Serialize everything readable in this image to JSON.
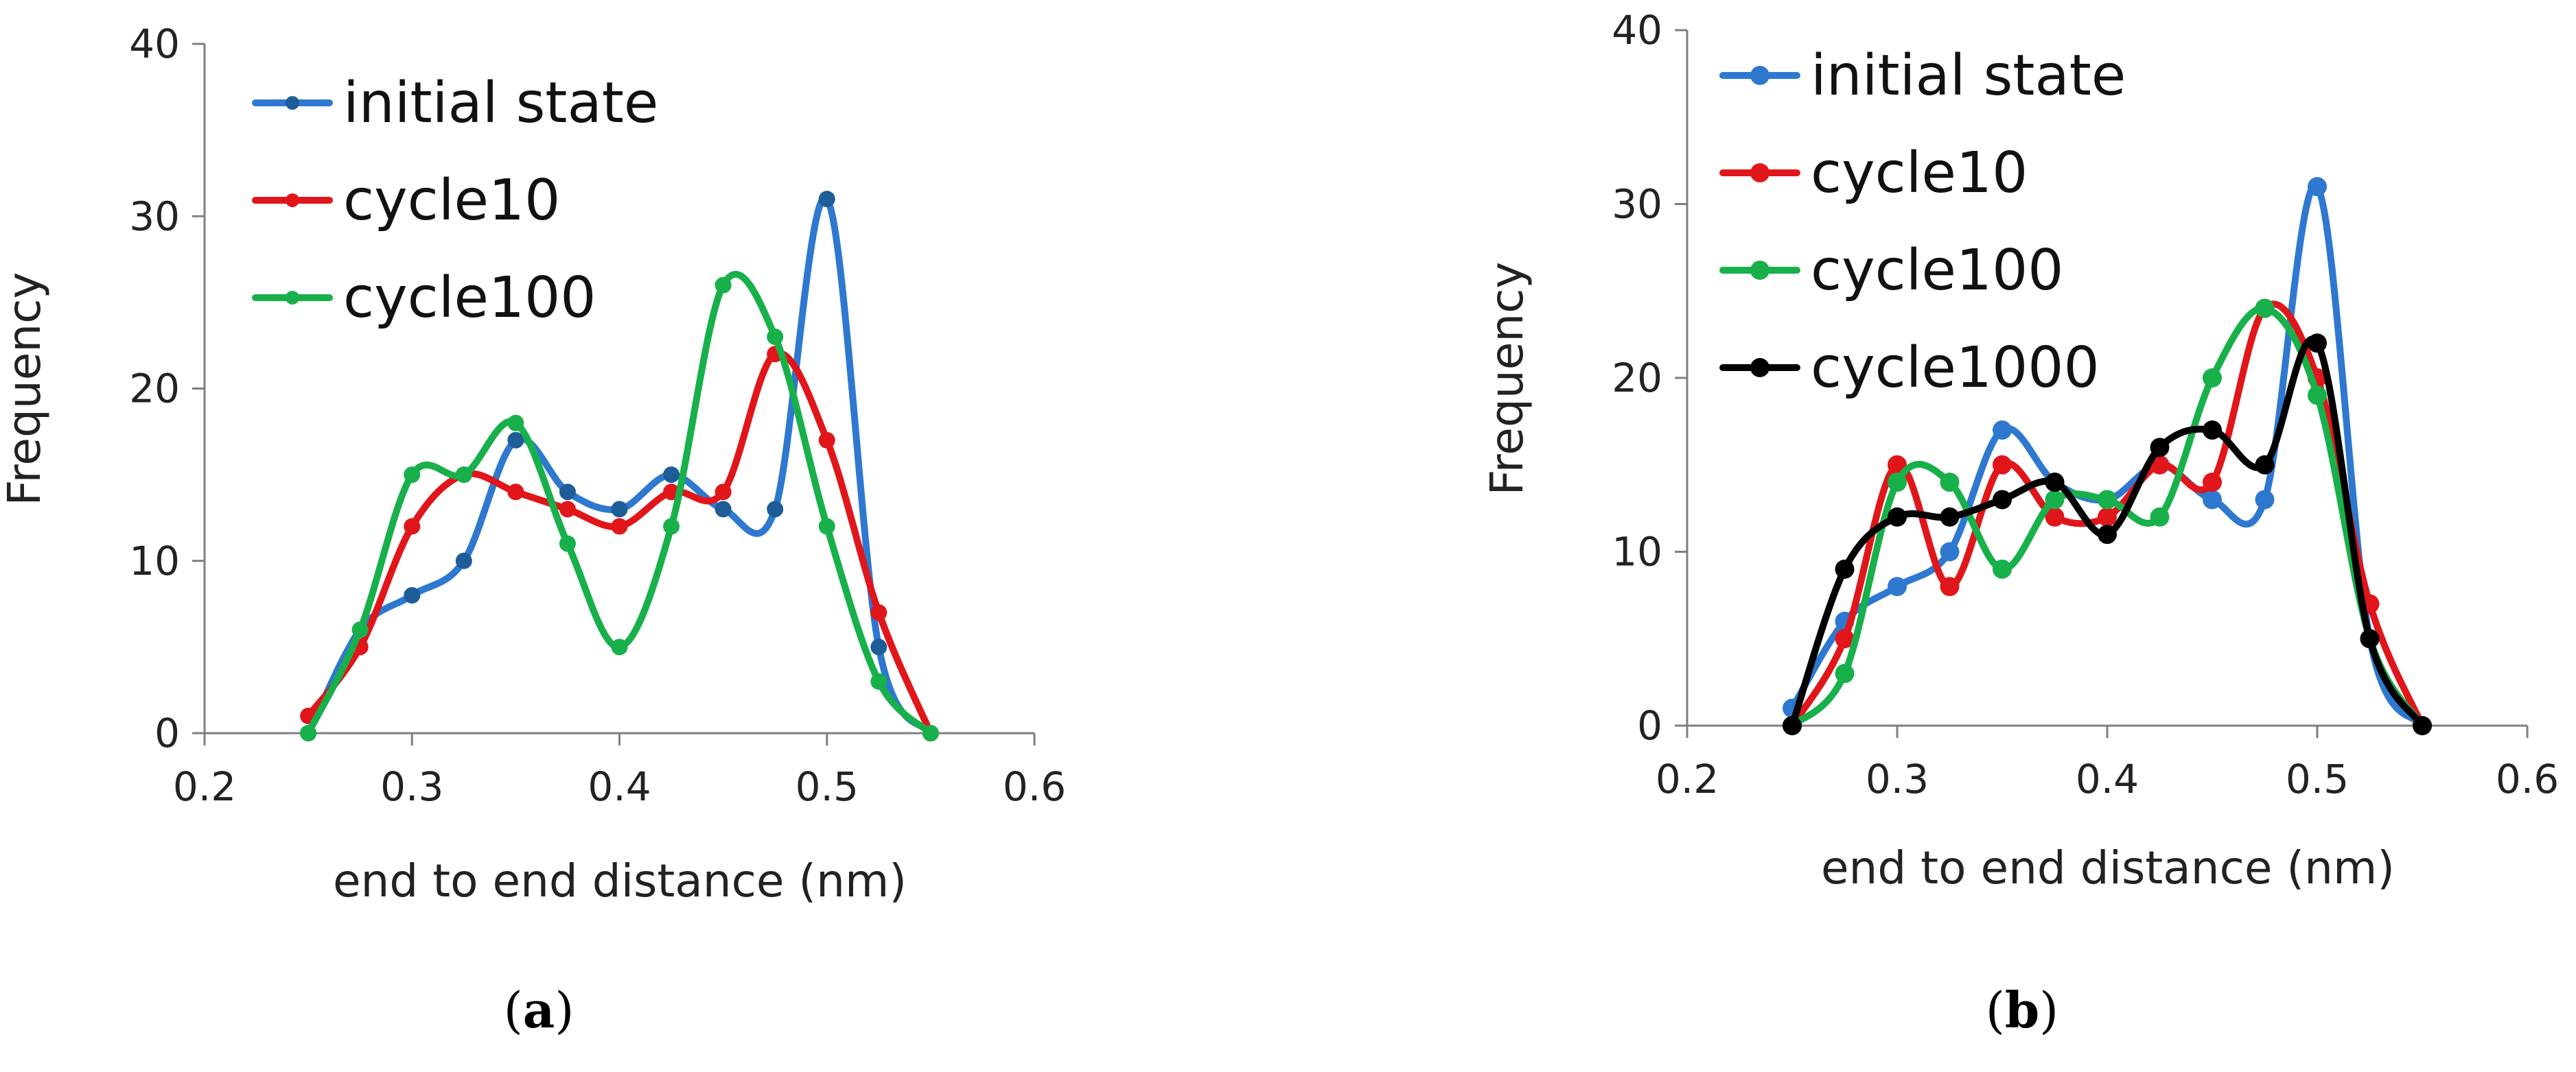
{
  "chart_data": [
    {
      "panel": "(a)",
      "panel_letter": "a",
      "type": "line",
      "smooth": true,
      "xlabel": "end to end distance (nm)",
      "ylabel": "Frequency",
      "xlim": [
        0.2,
        0.6
      ],
      "ylim": [
        0,
        40
      ],
      "xticks": [
        0.2,
        0.3,
        0.4,
        0.5,
        0.6
      ],
      "xtick_labels": [
        "0.2",
        "0.3",
        "0.4",
        "0.5",
        "0.6"
      ],
      "yticks": [
        0,
        10,
        20,
        30,
        40
      ],
      "ytick_labels": [
        "0",
        "10",
        "20",
        "30",
        "40"
      ],
      "legend_position": "top-left",
      "x": [
        0.25,
        0.275,
        0.3,
        0.325,
        0.35,
        0.375,
        0.4,
        0.425,
        0.45,
        0.475,
        0.5,
        0.525,
        0.55
      ],
      "series": [
        {
          "name": "initial state",
          "color": "#2e78d0",
          "marker_color": "#1f5d99",
          "values": [
            0,
            6,
            8,
            10,
            17,
            14,
            13,
            15,
            13,
            13,
            31,
            5,
            0
          ]
        },
        {
          "name": "cycle10",
          "color": "#e0161b",
          "marker_color": "#e0161b",
          "values": [
            1,
            5,
            12,
            15,
            14,
            13,
            12,
            14,
            14,
            22,
            17,
            7,
            0
          ]
        },
        {
          "name": "cycle100",
          "color": "#18b04a",
          "marker_color": "#18b04a",
          "values": [
            0,
            6,
            15,
            15,
            18,
            11,
            5,
            12,
            26,
            23,
            12,
            3,
            0
          ]
        }
      ]
    },
    {
      "panel": "(b)",
      "panel_letter": "b",
      "type": "line",
      "smooth": true,
      "xlabel": "end to end distance (nm)",
      "ylabel": "Frequency",
      "xlim": [
        0.2,
        0.6
      ],
      "ylim": [
        0,
        40
      ],
      "xticks": [
        0.2,
        0.3,
        0.4,
        0.5,
        0.6
      ],
      "xtick_labels": [
        "0.2",
        "0.3",
        "0.4",
        "0.5",
        "0.6"
      ],
      "yticks": [
        0,
        10,
        20,
        30,
        40
      ],
      "ytick_labels": [
        "0",
        "10",
        "20",
        "30",
        "40"
      ],
      "legend_position": "top-left",
      "x": [
        0.25,
        0.275,
        0.3,
        0.325,
        0.35,
        0.375,
        0.4,
        0.425,
        0.45,
        0.475,
        0.5,
        0.525,
        0.55
      ],
      "series": [
        {
          "name": "initial state",
          "color": "#2e78d0",
          "marker_color": "#2e78d0",
          "values": [
            1,
            6,
            8,
            10,
            17,
            14,
            13,
            15,
            13,
            13,
            31,
            5,
            0
          ]
        },
        {
          "name": "cycle10",
          "color": "#e0161b",
          "marker_color": "#e0161b",
          "values": [
            0,
            5,
            15,
            8,
            15,
            12,
            12,
            15,
            14,
            24,
            20,
            7,
            0
          ]
        },
        {
          "name": "cycle100",
          "color": "#18b04a",
          "marker_color": "#18b04a",
          "values": [
            0,
            3,
            14,
            14,
            9,
            13,
            13,
            12,
            20,
            24,
            19,
            5,
            0
          ]
        },
        {
          "name": "cycle1000",
          "color": "#000000",
          "marker_color": "#000000",
          "values": [
            0,
            9,
            12,
            12,
            13,
            14,
            11,
            16,
            17,
            15,
            22,
            5,
            0
          ]
        }
      ]
    }
  ]
}
